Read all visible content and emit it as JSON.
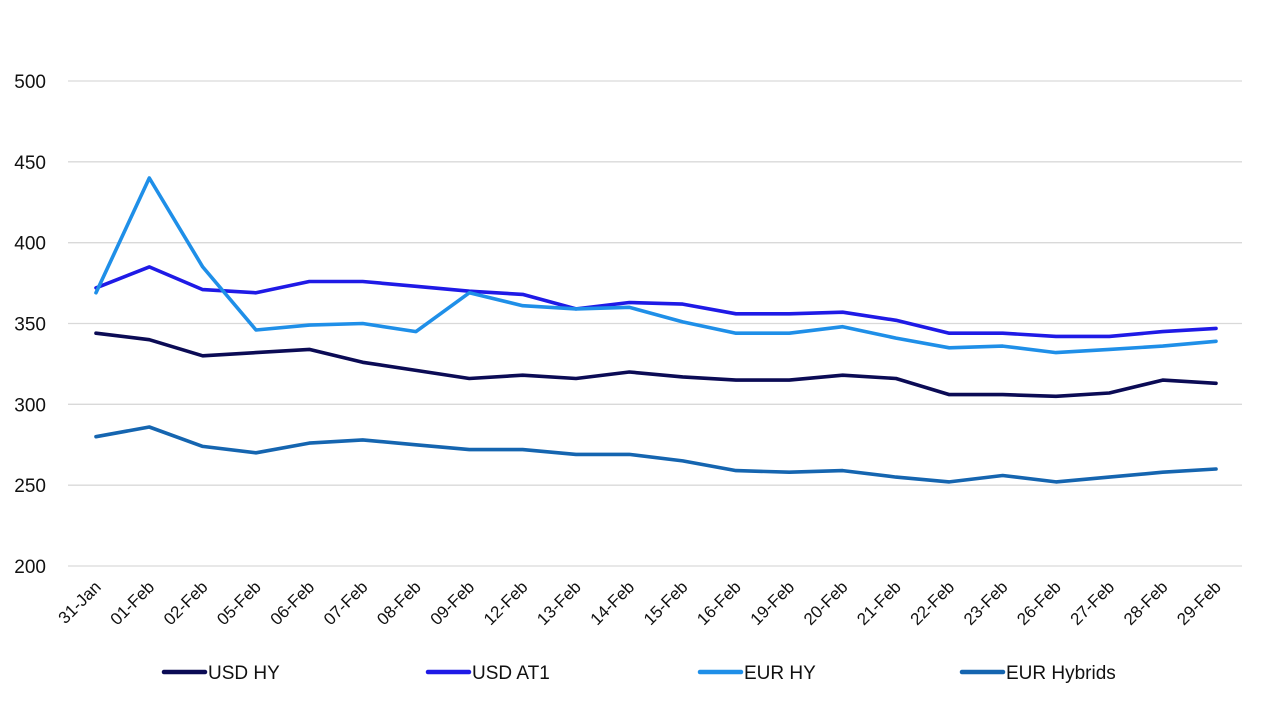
{
  "chart_data": {
    "type": "line",
    "title": "",
    "xlabel": "",
    "ylabel": "",
    "ylim": [
      200,
      500
    ],
    "yticks": [
      200,
      250,
      300,
      350,
      400,
      450,
      500
    ],
    "grid": true,
    "legend_position": "bottom",
    "categories": [
      "31-Jan",
      "01-Feb",
      "02-Feb",
      "05-Feb",
      "06-Feb",
      "07-Feb",
      "08-Feb",
      "09-Feb",
      "12-Feb",
      "13-Feb",
      "14-Feb",
      "15-Feb",
      "16-Feb",
      "19-Feb",
      "20-Feb",
      "21-Feb",
      "22-Feb",
      "23-Feb",
      "26-Feb",
      "27-Feb",
      "28-Feb",
      "29-Feb"
    ],
    "series": [
      {
        "name": "USD HY",
        "color": "#0b0b55",
        "values": [
          344,
          340,
          330,
          332,
          334,
          326,
          321,
          316,
          318,
          316,
          320,
          317,
          315,
          315,
          318,
          316,
          306,
          306,
          305,
          307,
          315,
          313
        ]
      },
      {
        "name": "USD AT1",
        "color": "#1f1ae6",
        "values": [
          372,
          385,
          371,
          369,
          376,
          376,
          373,
          370,
          368,
          359,
          363,
          362,
          356,
          356,
          357,
          352,
          344,
          344,
          342,
          342,
          345,
          347
        ]
      },
      {
        "name": "EUR HY",
        "color": "#1f8fe8",
        "values": [
          369,
          440,
          385,
          346,
          349,
          350,
          345,
          369,
          361,
          359,
          360,
          351,
          344,
          344,
          348,
          341,
          335,
          336,
          332,
          334,
          336,
          339
        ]
      },
      {
        "name": "EUR Hybrids",
        "color": "#1565b0",
        "values": [
          280,
          286,
          274,
          270,
          276,
          278,
          275,
          272,
          272,
          269,
          269,
          265,
          259,
          258,
          259,
          255,
          252,
          256,
          252,
          255,
          258,
          260
        ]
      }
    ]
  }
}
